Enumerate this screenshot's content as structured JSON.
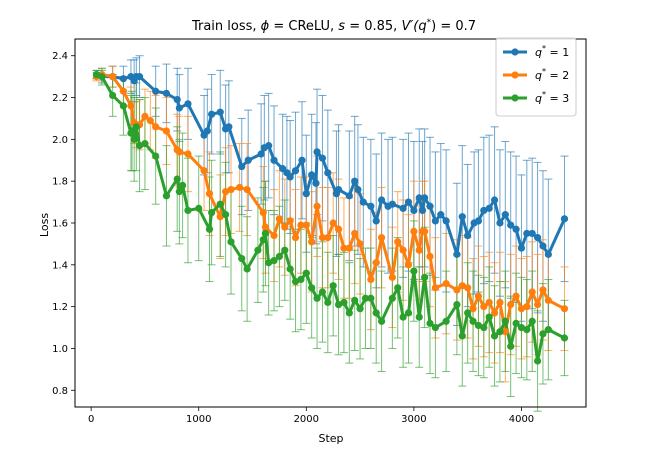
{
  "chart_data": {
    "type": "line",
    "title": "Train loss, ϕ = CReLU, s = 0.85, V′(q*) = 0.7",
    "title_parts": {
      "prefix": "Train loss, ",
      "phi": "ϕ",
      "phi_value": " = CReLU, ",
      "s": "s",
      "s_value": " = 0.85, ",
      "v": "V′(q",
      "star": "*",
      "v_value": ") = 0.7"
    },
    "xlabel": "Step",
    "ylabel": "Loss",
    "xlim": [
      -150,
      4600
    ],
    "ylim": [
      0.72,
      2.48
    ],
    "xticks": [
      0,
      1000,
      2000,
      3000,
      4000
    ],
    "yticks": [
      0.8,
      1.0,
      1.2,
      1.4,
      1.6,
      1.8,
      2.0,
      2.2,
      2.4
    ],
    "legend_position": "top-right",
    "series": [
      {
        "name": "q* = 1",
        "legend_q": "q",
        "legend_star": "*",
        "legend_value": " = 1",
        "color": "#1f77b4",
        "x": [
          50,
          100,
          200,
          300,
          370,
          400,
          420,
          450,
          600,
          700,
          800,
          820,
          900,
          1050,
          1080,
          1120,
          1200,
          1250,
          1280,
          1400,
          1460,
          1580,
          1610,
          1650,
          1700,
          1780,
          1820,
          1850,
          1900,
          1960,
          2000,
          2050,
          2090,
          2100,
          2150,
          2200,
          2280,
          2300,
          2400,
          2450,
          2480,
          2530,
          2600,
          2650,
          2700,
          2760,
          2800,
          2900,
          2950,
          3000,
          3050,
          3080,
          3100,
          3150,
          3200,
          3250,
          3300,
          3400,
          3450,
          3500,
          3560,
          3600,
          3650,
          3700,
          3750,
          3800,
          3850,
          3900,
          3950,
          4000,
          4050,
          4100,
          4150,
          4200,
          4250,
          4400
        ],
        "values": [
          2.31,
          2.3,
          2.3,
          2.29,
          2.3,
          2.28,
          2.3,
          2.3,
          2.23,
          2.22,
          2.19,
          2.15,
          2.17,
          2.02,
          2.04,
          2.12,
          2.13,
          2.05,
          2.06,
          1.87,
          1.9,
          1.93,
          1.96,
          1.97,
          1.9,
          1.86,
          1.84,
          1.82,
          1.85,
          1.9,
          1.74,
          1.83,
          1.79,
          1.94,
          1.91,
          1.84,
          1.74,
          1.76,
          1.73,
          1.8,
          1.76,
          1.7,
          1.68,
          1.61,
          1.71,
          1.68,
          1.69,
          1.67,
          1.7,
          1.66,
          1.72,
          1.66,
          1.72,
          1.68,
          1.61,
          1.64,
          1.61,
          1.45,
          1.63,
          1.54,
          1.6,
          1.61,
          1.66,
          1.67,
          1.71,
          1.6,
          1.64,
          1.59,
          1.57,
          1.48,
          1.55,
          1.55,
          1.53,
          1.49,
          1.45,
          1.62
        ],
        "errors": [
          0.02,
          0.03,
          0.05,
          0.06,
          0.08,
          0.1,
          0.09,
          0.1,
          0.12,
          0.14,
          0.15,
          0.16,
          0.17,
          0.19,
          0.2,
          0.19,
          0.2,
          0.21,
          0.22,
          0.23,
          0.24,
          0.24,
          0.25,
          0.25,
          0.26,
          0.26,
          0.27,
          0.27,
          0.28,
          0.28,
          0.28,
          0.29,
          0.29,
          0.3,
          0.3,
          0.3,
          0.3,
          0.31,
          0.31,
          0.31,
          0.31,
          0.31,
          0.32,
          0.32,
          0.32,
          0.32,
          0.32,
          0.33,
          0.33,
          0.33,
          0.33,
          0.33,
          0.33,
          0.33,
          0.33,
          0.34,
          0.34,
          0.34,
          0.34,
          0.34,
          0.34,
          0.34,
          0.35,
          0.35,
          0.35,
          0.35,
          0.35,
          0.35,
          0.35,
          0.35,
          0.35,
          0.36,
          0.36,
          0.36,
          0.36,
          0.3
        ]
      },
      {
        "name": "q* = 2",
        "legend_q": "q",
        "legend_star": "*",
        "legend_value": " = 2",
        "color": "#ff7f0e",
        "x": [
          50,
          100,
          200,
          300,
          370,
          400,
          420,
          450,
          500,
          550,
          600,
          700,
          800,
          820,
          900,
          1050,
          1100,
          1200,
          1250,
          1300,
          1380,
          1450,
          1600,
          1620,
          1700,
          1750,
          1800,
          1850,
          1900,
          1950,
          2000,
          2050,
          2100,
          2150,
          2200,
          2250,
          2300,
          2350,
          2400,
          2450,
          2500,
          2600,
          2650,
          2700,
          2800,
          2850,
          2900,
          2950,
          3000,
          3050,
          3080,
          3100,
          3150,
          3200,
          3300,
          3400,
          3450,
          3500,
          3550,
          3600,
          3650,
          3700,
          3750,
          3800,
          3850,
          3900,
          3950,
          4000,
          4050,
          4100,
          4150,
          4200,
          4250,
          4400
        ],
        "values": [
          2.3,
          2.31,
          2.3,
          2.23,
          2.16,
          2.08,
          2.07,
          2.07,
          2.11,
          2.09,
          2.06,
          2.04,
          1.95,
          1.94,
          1.93,
          1.85,
          1.74,
          1.63,
          1.75,
          1.76,
          1.77,
          1.76,
          1.65,
          1.58,
          1.54,
          1.62,
          1.58,
          1.61,
          1.53,
          1.59,
          1.59,
          1.51,
          1.68,
          1.53,
          1.53,
          1.6,
          1.57,
          1.48,
          1.48,
          1.55,
          1.5,
          1.33,
          1.41,
          1.53,
          1.34,
          1.51,
          1.47,
          1.4,
          1.56,
          1.47,
          1.56,
          1.56,
          1.44,
          1.29,
          1.31,
          1.28,
          1.3,
          1.29,
          1.19,
          1.25,
          1.2,
          1.22,
          1.17,
          1.22,
          1.08,
          1.21,
          1.25,
          1.19,
          1.2,
          1.27,
          1.21,
          1.28,
          1.23,
          1.19
        ],
        "errors": [
          0.02,
          0.03,
          0.05,
          0.07,
          0.09,
          0.1,
          0.11,
          0.12,
          0.13,
          0.14,
          0.15,
          0.16,
          0.17,
          0.17,
          0.18,
          0.19,
          0.2,
          0.2,
          0.21,
          0.21,
          0.21,
          0.22,
          0.22,
          0.22,
          0.22,
          0.23,
          0.23,
          0.23,
          0.23,
          0.23,
          0.23,
          0.24,
          0.24,
          0.24,
          0.24,
          0.24,
          0.24,
          0.24,
          0.24,
          0.24,
          0.24,
          0.24,
          0.24,
          0.24,
          0.24,
          0.24,
          0.24,
          0.24,
          0.24,
          0.24,
          0.24,
          0.24,
          0.24,
          0.24,
          0.24,
          0.24,
          0.24,
          0.24,
          0.24,
          0.24,
          0.24,
          0.24,
          0.24,
          0.24,
          0.24,
          0.24,
          0.24,
          0.24,
          0.24,
          0.24,
          0.24,
          0.24,
          0.24,
          0.2
        ]
      },
      {
        "name": "q* = 3",
        "legend_q": "q",
        "legend_star": "*",
        "legend_value": " = 3",
        "color": "#2ca02c",
        "x": [
          50,
          100,
          200,
          300,
          370,
          380,
          400,
          420,
          450,
          500,
          600,
          700,
          800,
          820,
          850,
          900,
          1000,
          1100,
          1120,
          1200,
          1250,
          1300,
          1400,
          1450,
          1550,
          1600,
          1620,
          1650,
          1700,
          1750,
          1800,
          1850,
          1900,
          1950,
          2000,
          2050,
          2100,
          2150,
          2200,
          2250,
          2300,
          2350,
          2400,
          2450,
          2500,
          2550,
          2600,
          2650,
          2700,
          2800,
          2850,
          2900,
          2950,
          3000,
          3050,
          3100,
          3150,
          3200,
          3300,
          3400,
          3450,
          3500,
          3550,
          3600,
          3650,
          3700,
          3750,
          3800,
          3850,
          3900,
          3950,
          4000,
          4050,
          4100,
          4150,
          4200,
          4250,
          4400
        ],
        "values": [
          2.31,
          2.3,
          2.21,
          2.16,
          2.03,
          2.04,
          2.0,
          2.06,
          1.97,
          1.98,
          1.92,
          1.73,
          1.81,
          1.75,
          1.78,
          1.66,
          1.67,
          1.57,
          1.65,
          1.69,
          1.64,
          1.51,
          1.43,
          1.38,
          1.47,
          1.52,
          1.55,
          1.41,
          1.42,
          1.44,
          1.47,
          1.38,
          1.32,
          1.33,
          1.36,
          1.29,
          1.24,
          1.27,
          1.22,
          1.3,
          1.21,
          1.22,
          1.17,
          1.23,
          1.19,
          1.24,
          1.24,
          1.17,
          1.13,
          1.24,
          1.29,
          1.15,
          1.17,
          1.37,
          1.15,
          1.34,
          1.12,
          1.1,
          1.13,
          1.21,
          1.06,
          1.17,
          1.13,
          1.11,
          1.1,
          1.15,
          1.06,
          1.08,
          1.13,
          1.01,
          1.12,
          1.1,
          1.09,
          1.13,
          0.94,
          1.07,
          1.09,
          1.05
        ],
        "errors": [
          0.02,
          0.04,
          0.1,
          0.14,
          0.18,
          0.19,
          0.2,
          0.21,
          0.22,
          0.22,
          0.23,
          0.24,
          0.25,
          0.25,
          0.25,
          0.25,
          0.25,
          0.25,
          0.25,
          0.25,
          0.25,
          0.25,
          0.25,
          0.25,
          0.25,
          0.25,
          0.25,
          0.25,
          0.24,
          0.24,
          0.24,
          0.24,
          0.24,
          0.24,
          0.24,
          0.24,
          0.24,
          0.24,
          0.24,
          0.24,
          0.24,
          0.24,
          0.24,
          0.24,
          0.24,
          0.24,
          0.24,
          0.24,
          0.24,
          0.24,
          0.24,
          0.24,
          0.24,
          0.24,
          0.24,
          0.24,
          0.24,
          0.24,
          0.24,
          0.24,
          0.24,
          0.24,
          0.24,
          0.24,
          0.24,
          0.24,
          0.24,
          0.24,
          0.24,
          0.24,
          0.24,
          0.24,
          0.24,
          0.24,
          0.24,
          0.24,
          0.24,
          0.18
        ]
      }
    ]
  }
}
